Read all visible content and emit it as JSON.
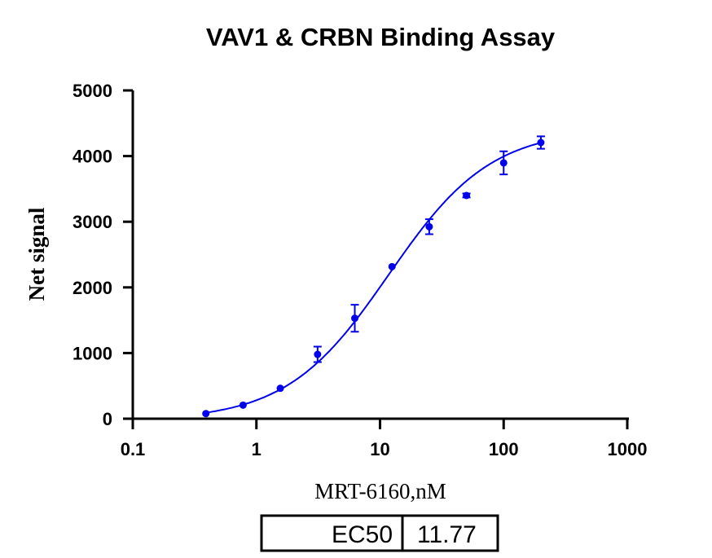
{
  "chart_data": {
    "type": "scatter",
    "title": "VAV1 & CRBN Binding  Assay",
    "xlabel": "MRT-6160,nM",
    "ylabel": "Net signal",
    "x_scale": "log",
    "xlim": [
      0.1,
      1000
    ],
    "ylim": [
      0,
      5000
    ],
    "x_ticks": [
      "0.1",
      "1",
      "10",
      "100",
      "1000"
    ],
    "y_ticks": [
      "0",
      "1000",
      "2000",
      "3000",
      "4000",
      "5000"
    ],
    "grid": false,
    "color": "#0000ee",
    "series": [
      {
        "x": [
          0.39,
          0.78,
          1.56,
          3.125,
          6.25,
          12.5,
          25,
          50,
          100,
          200
        ],
        "y": [
          78,
          207,
          463,
          980,
          1530,
          2316,
          2924,
          3400,
          3896,
          4206
        ],
        "error": [
          0,
          0,
          0,
          118,
          205,
          0,
          114,
          30,
          176,
          95
        ]
      }
    ],
    "fit_curve": "sigmoidal dose-response",
    "table": {
      "label": "EC50",
      "value": "11.77"
    }
  }
}
